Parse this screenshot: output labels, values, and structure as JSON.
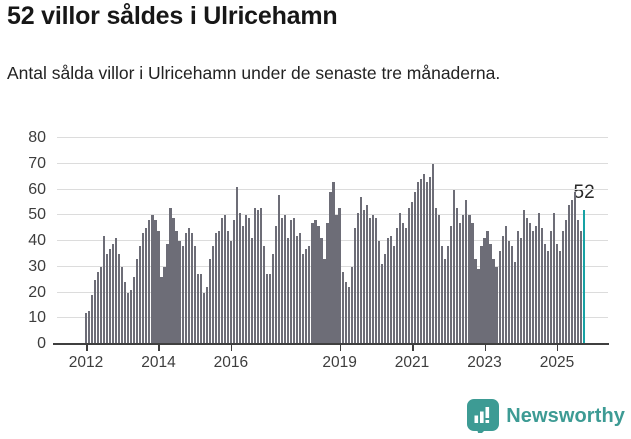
{
  "header": {
    "title": "52 villor såldes i Ulricehamn",
    "subtitle": "Antal sålda villor i Ulricehamn under de senaste tre månaderna."
  },
  "chart_data": {
    "type": "bar",
    "title": "52 villor såldes i Ulricehamn",
    "subtitle": "Antal sålda villor i Ulricehamn under de senaste tre månaderna.",
    "frequency": "monthly",
    "x_start": "2012-01",
    "x_end": "2025-10",
    "ylim": [
      0,
      80
    ],
    "yticks": [
      0,
      10,
      20,
      30,
      40,
      50,
      60,
      70,
      80
    ],
    "grid": true,
    "legend": false,
    "xticks": [
      {
        "label": "2012",
        "month": 0
      },
      {
        "label": "2014",
        "month": 24
      },
      {
        "label": "2016",
        "month": 48
      },
      {
        "label": "2019",
        "month": 84
      },
      {
        "label": "2021",
        "month": 108
      },
      {
        "label": "2023",
        "month": 132
      },
      {
        "label": "2025",
        "month": 156
      }
    ],
    "values": [
      12,
      13,
      19,
      25,
      28,
      30,
      42,
      35,
      37,
      39,
      41,
      35,
      30,
      24,
      20,
      21,
      26,
      33,
      38,
      43,
      45,
      48,
      50,
      48,
      44,
      26,
      30,
      39,
      53,
      49,
      44,
      40,
      38,
      43,
      45,
      43,
      38,
      27,
      27,
      20,
      22,
      33,
      38,
      43,
      44,
      49,
      50,
      44,
      40,
      48,
      61,
      51,
      46,
      50,
      49,
      41,
      53,
      52,
      53,
      38,
      27,
      27,
      35,
      46,
      58,
      49,
      50,
      41,
      48,
      49,
      42,
      43,
      35,
      37,
      38,
      47,
      48,
      46,
      41,
      33,
      47,
      59,
      63,
      50,
      53,
      28,
      24,
      22,
      30,
      45,
      51,
      57,
      52,
      54,
      49,
      50,
      49,
      40,
      31,
      35,
      41,
      42,
      38,
      45,
      51,
      47,
      45,
      53,
      55,
      59,
      63,
      64,
      66,
      63,
      65,
      70,
      53,
      50,
      38,
      33,
      38,
      46,
      60,
      53,
      47,
      50,
      56,
      50,
      47,
      33,
      29,
      38,
      41,
      44,
      39,
      33,
      30,
      36,
      42,
      46,
      40,
      38,
      32,
      44,
      41,
      52,
      49,
      47,
      44,
      46,
      51,
      45,
      39,
      36,
      44,
      51,
      39,
      36,
      44,
      48,
      54,
      56,
      59,
      48,
      44,
      52
    ],
    "highlight_index": 165,
    "highlight_value": 52,
    "annotation": "52",
    "colors": {
      "bar": "#6d6d77",
      "highlight": "#17a2a4",
      "grid": "#dcdcdc",
      "axis": "#3f3f3f"
    }
  },
  "footer": {
    "brand": "Newsworthy",
    "brand_color": "#3d9b94"
  }
}
